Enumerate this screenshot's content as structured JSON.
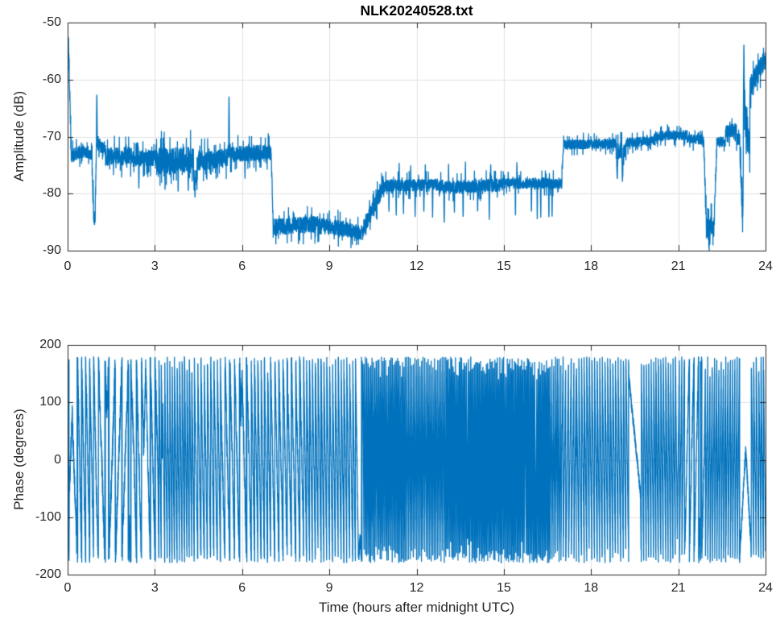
{
  "figure": {
    "background": "#ffffff",
    "axis_color": "#262626",
    "grid_color": "#e2e2e2",
    "line_color": "#0072BD"
  },
  "chart_data": [
    {
      "type": "line",
      "title": "NLK20240528.txt",
      "xlabel": "",
      "ylabel": "Amplitude (dB)",
      "xlim": [
        0,
        24
      ],
      "ylim": [
        -90,
        -50
      ],
      "xticks": [
        0,
        3,
        6,
        9,
        12,
        15,
        18,
        21,
        24
      ],
      "yticks": [
        -90,
        -80,
        -70,
        -60,
        -50
      ],
      "xtick_labels": [
        "0",
        "3",
        "6",
        "9",
        "12",
        "15",
        "18",
        "21",
        "24"
      ],
      "ytick_labels": [
        "-90",
        "-80",
        "-70",
        "-60",
        "-50"
      ],
      "grid": true,
      "legend": null,
      "line_color": "#0072BD",
      "series_name": "amplitude_dB",
      "description": "Noisy VLF amplitude trace; values estimated from plot, encoded as segments [t_start,t_end,value_start,value_end,noise_halfwidth] in hours/dB",
      "segments": [
        [
          0.0,
          0.05,
          -54.5,
          -54.5,
          2.2
        ],
        [
          0.05,
          0.13,
          -58,
          -74,
          3.0
        ],
        [
          0.13,
          0.55,
          -73.4,
          -72.4,
          1.4
        ],
        [
          0.55,
          0.84,
          -72.6,
          -73.2,
          1.1
        ],
        [
          0.84,
          0.9,
          -76,
          -84,
          1.8
        ],
        [
          0.9,
          0.95,
          -84.6,
          -84.6,
          1.2
        ],
        [
          0.95,
          0.99,
          -83,
          -72,
          2.0
        ],
        [
          0.99,
          1.3,
          -71.4,
          -72.2,
          1.2
        ],
        [
          1.3,
          2.2,
          -73.6,
          -73.4,
          1.8
        ],
        [
          2.2,
          3.1,
          -73.9,
          -73.7,
          1.6
        ],
        [
          3.1,
          4.33,
          -74.3,
          -74.1,
          2.6
        ],
        [
          4.33,
          4.45,
          -77.5,
          -77.5,
          2.4
        ],
        [
          4.45,
          5.5,
          -74.4,
          -73.7,
          1.9
        ],
        [
          5.5,
          5.6,
          -72.5,
          -72.5,
          1.5
        ],
        [
          5.6,
          7.0,
          -73.1,
          -72.7,
          1.6
        ],
        [
          7.0,
          7.07,
          -74,
          -85,
          2.0
        ],
        [
          7.07,
          8.6,
          -85.8,
          -85.4,
          1.7
        ],
        [
          8.6,
          9.6,
          -85.7,
          -86.2,
          1.6
        ],
        [
          9.6,
          10.15,
          -86.4,
          -86.9,
          1.5
        ],
        [
          10.15,
          10.8,
          -86.3,
          -79.4,
          1.7
        ],
        [
          10.8,
          12.9,
          -78.6,
          -78.4,
          1.2
        ],
        [
          12.9,
          14.9,
          -78.9,
          -78.5,
          1.3
        ],
        [
          14.9,
          17.0,
          -78.2,
          -78.2,
          1.1
        ],
        [
          17.0,
          17.06,
          -76,
          -71.6,
          1.2
        ],
        [
          17.06,
          18.85,
          -71.4,
          -71.2,
          1.0
        ],
        [
          18.85,
          19.2,
          -72.5,
          -72.5,
          1.6
        ],
        [
          19.2,
          20.2,
          -71.1,
          -70.7,
          1.0
        ],
        [
          20.2,
          21.3,
          -69.9,
          -69.7,
          1.0
        ],
        [
          21.3,
          21.88,
          -70.4,
          -70.6,
          1.0
        ],
        [
          21.88,
          21.96,
          -72,
          -85,
          2.2
        ],
        [
          21.96,
          22.24,
          -86.3,
          -86.0,
          2.2
        ],
        [
          22.24,
          22.32,
          -84,
          -71.6,
          2.0
        ],
        [
          22.32,
          22.62,
          -70.9,
          -70.9,
          1.0
        ],
        [
          22.62,
          23.0,
          -69.2,
          -68.7,
          1.3
        ],
        [
          23.0,
          23.12,
          -70.4,
          -70.4,
          1.2
        ],
        [
          23.12,
          23.22,
          -72,
          -85.5,
          2.6
        ],
        [
          23.22,
          23.3,
          -84,
          -62,
          5.0
        ],
        [
          23.3,
          23.46,
          -66,
          -73,
          4.0
        ],
        [
          23.46,
          23.75,
          -61.5,
          -58.6,
          2.2
        ],
        [
          23.75,
          24.0,
          -58.2,
          -56.6,
          1.9
        ]
      ],
      "spikes": [
        {
          "t": 1.005,
          "v": -62.2,
          "w": 0.014
        },
        {
          "t": 5.55,
          "v": -62.6,
          "w": 0.014
        },
        {
          "t": 23.255,
          "v": -53.2,
          "w": 0.022
        },
        {
          "t": 2.45,
          "v": -79.2,
          "w": 0.01
        },
        {
          "t": 3.35,
          "v": -79.6,
          "w": 0.01
        },
        {
          "t": 3.8,
          "v": -80.2,
          "w": 0.01
        },
        {
          "t": 4.15,
          "v": -79.6,
          "w": 0.01
        },
        {
          "t": 4.38,
          "v": -80.8,
          "w": 0.01
        },
        {
          "t": 6.1,
          "v": -77.5,
          "w": 0.01
        },
        {
          "t": 11.05,
          "v": -83.5,
          "w": 0.01
        },
        {
          "t": 11.3,
          "v": -84.0,
          "w": 0.01
        },
        {
          "t": 11.55,
          "v": -83.8,
          "w": 0.01
        },
        {
          "t": 11.95,
          "v": -84.2,
          "w": 0.01
        },
        {
          "t": 12.25,
          "v": -83.6,
          "w": 0.01
        },
        {
          "t": 12.55,
          "v": -84.3,
          "w": 0.01
        },
        {
          "t": 12.95,
          "v": -85.6,
          "w": 0.012
        },
        {
          "t": 13.3,
          "v": -83.5,
          "w": 0.01
        },
        {
          "t": 13.6,
          "v": -84.5,
          "w": 0.01
        },
        {
          "t": 14.1,
          "v": -83.4,
          "w": 0.01
        },
        {
          "t": 14.5,
          "v": -84.8,
          "w": 0.01
        },
        {
          "t": 15.4,
          "v": -84.2,
          "w": 0.01
        },
        {
          "t": 15.95,
          "v": -83.6,
          "w": 0.01
        },
        {
          "t": 16.15,
          "v": -84.6,
          "w": 0.01
        },
        {
          "t": 16.27,
          "v": -84.3,
          "w": 0.01
        },
        {
          "t": 16.55,
          "v": -84.7,
          "w": 0.01
        },
        {
          "t": 16.66,
          "v": -84.2,
          "w": 0.01
        },
        {
          "t": 11.4,
          "v": -74.6,
          "w": 0.008
        },
        {
          "t": 11.8,
          "v": -74.8,
          "w": 0.008
        },
        {
          "t": 12.3,
          "v": -74.5,
          "w": 0.008
        },
        {
          "t": 13.1,
          "v": -74.6,
          "w": 0.008
        },
        {
          "t": 13.68,
          "v": -74.4,
          "w": 0.008
        },
        {
          "t": 14.55,
          "v": -74.6,
          "w": 0.008
        },
        {
          "t": 15.45,
          "v": -74.3,
          "w": 0.008
        },
        {
          "t": 18.9,
          "v": -77.6,
          "w": 0.02
        },
        {
          "t": 19.08,
          "v": -77.9,
          "w": 0.02
        }
      ]
    },
    {
      "type": "line",
      "title": "",
      "xlabel": "Time (hours after midnight UTC)",
      "ylabel": "Phase (degrees)",
      "xlim": [
        0,
        24
      ],
      "ylim": [
        -200,
        200
      ],
      "xticks": [
        0,
        3,
        6,
        9,
        12,
        15,
        18,
        21,
        24
      ],
      "yticks": [
        -200,
        -100,
        0,
        100,
        200
      ],
      "xtick_labels": [
        "0",
        "3",
        "6",
        "9",
        "12",
        "15",
        "18",
        "21",
        "24"
      ],
      "ytick_labels": [
        "-200",
        "-100",
        "0",
        "100",
        "200"
      ],
      "grid": true,
      "legend": null,
      "line_color": "#0072BD",
      "series_name": "phase_degrees",
      "description": "Wrapped phase (+/-180 deg); wrapping density estimated from plot, encoded as segments [t_start,t_end,wraps_per_hour,jitter_deg,direction(0=random)]",
      "segments": [
        [
          0.0,
          0.06,
          30,
          10,
          0
        ],
        [
          0.06,
          0.35,
          4,
          18,
          0
        ],
        [
          0.35,
          1.0,
          7,
          18,
          0
        ],
        [
          1.0,
          2.3,
          4.5,
          20,
          0
        ],
        [
          2.3,
          3.1,
          6,
          18,
          0
        ],
        [
          3.1,
          4.35,
          12,
          14,
          0
        ],
        [
          4.35,
          5.3,
          9,
          16,
          0
        ],
        [
          5.3,
          6.3,
          6,
          20,
          0
        ],
        [
          6.3,
          7.0,
          9,
          16,
          0
        ],
        [
          7.0,
          8.1,
          7,
          18,
          0
        ],
        [
          8.1,
          10.0,
          10,
          14,
          0
        ],
        [
          10.0,
          10.15,
          2,
          12,
          0
        ],
        [
          10.15,
          11.6,
          22,
          12,
          0
        ],
        [
          11.6,
          13.0,
          18,
          12,
          0
        ],
        [
          13.0,
          16.6,
          24,
          10,
          0
        ],
        [
          16.6,
          17.0,
          16,
          12,
          0
        ],
        [
          17.0,
          19.3,
          11,
          12,
          0
        ],
        [
          19.3,
          19.7,
          1.4,
          8,
          -1
        ],
        [
          19.7,
          21.2,
          12,
          12,
          0
        ],
        [
          21.2,
          21.9,
          6,
          16,
          0
        ],
        [
          21.9,
          23.1,
          13,
          11,
          0
        ],
        [
          23.1,
          23.5,
          2.5,
          10,
          0
        ],
        [
          23.5,
          24.0,
          12,
          13,
          0
        ]
      ]
    }
  ]
}
